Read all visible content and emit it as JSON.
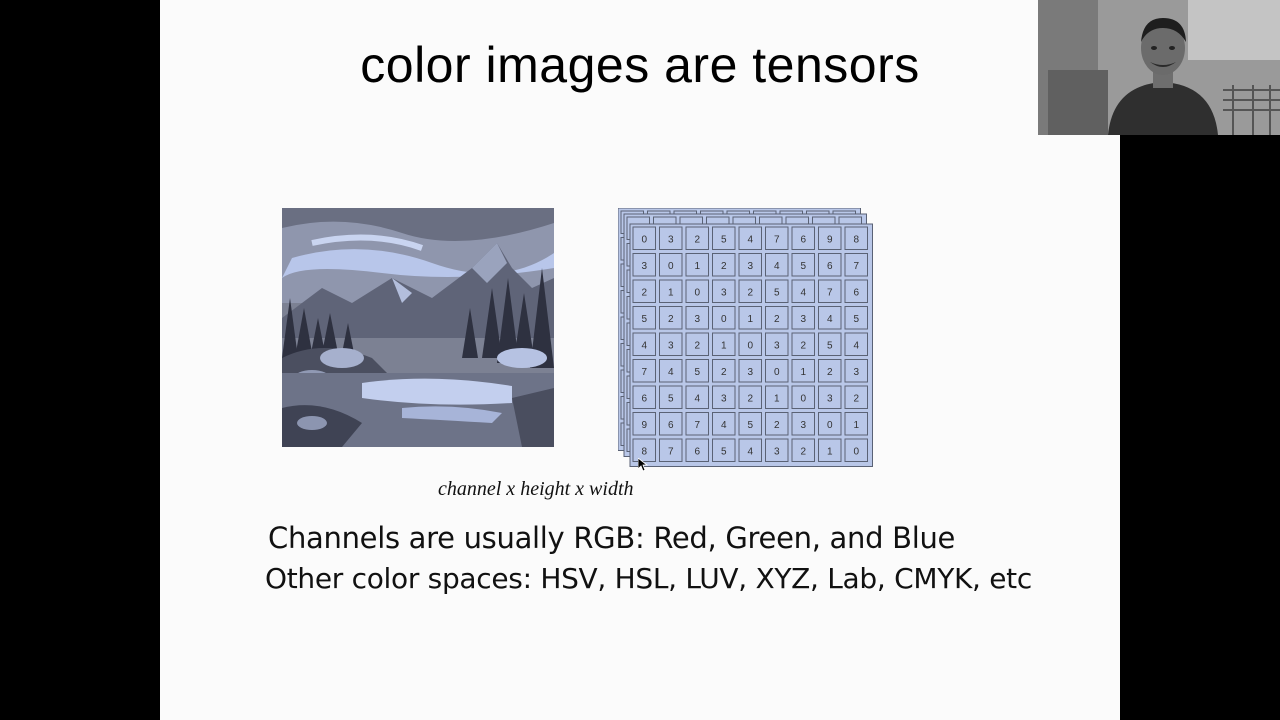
{
  "slide": {
    "title": "color images are tensors",
    "caption": "channel x height x width",
    "bullets": [
      "Channels are usually RGB: Red, Green, and Blue",
      "Other color spaces: HSV, HSL, LUV, XYZ, Lab, CMYK, etc"
    ],
    "tensor_matrix": [
      [
        "0",
        "3",
        "2",
        "5",
        "4",
        "7",
        "6",
        "9",
        "8"
      ],
      [
        "3",
        "0",
        "1",
        "2",
        "3",
        "4",
        "5",
        "6",
        "7"
      ],
      [
        "2",
        "1",
        "0",
        "3",
        "2",
        "5",
        "4",
        "7",
        "6"
      ],
      [
        "5",
        "2",
        "3",
        "0",
        "1",
        "2",
        "3",
        "4",
        "5"
      ],
      [
        "4",
        "3",
        "2",
        "1",
        "0",
        "3",
        "2",
        "5",
        "4"
      ],
      [
        "7",
        "4",
        "5",
        "2",
        "3",
        "0",
        "1",
        "2",
        "3"
      ],
      [
        "6",
        "5",
        "4",
        "3",
        "2",
        "1",
        "0",
        "3",
        "2"
      ],
      [
        "9",
        "6",
        "7",
        "4",
        "5",
        "2",
        "3",
        "0",
        "1"
      ],
      [
        "8",
        "7",
        "6",
        "5",
        "4",
        "3",
        "2",
        "1",
        "0"
      ]
    ]
  },
  "colors": {
    "slide_bg": "#fbfbfb",
    "tensor_fill": "#b9c7e8",
    "tensor_border": "#5a6275"
  },
  "icons": {
    "photo": "mountain-lake-photo",
    "tensor": "tensor-grid-stack",
    "webcam": "webcam-feed",
    "cursor": "mouse-cursor-icon"
  }
}
